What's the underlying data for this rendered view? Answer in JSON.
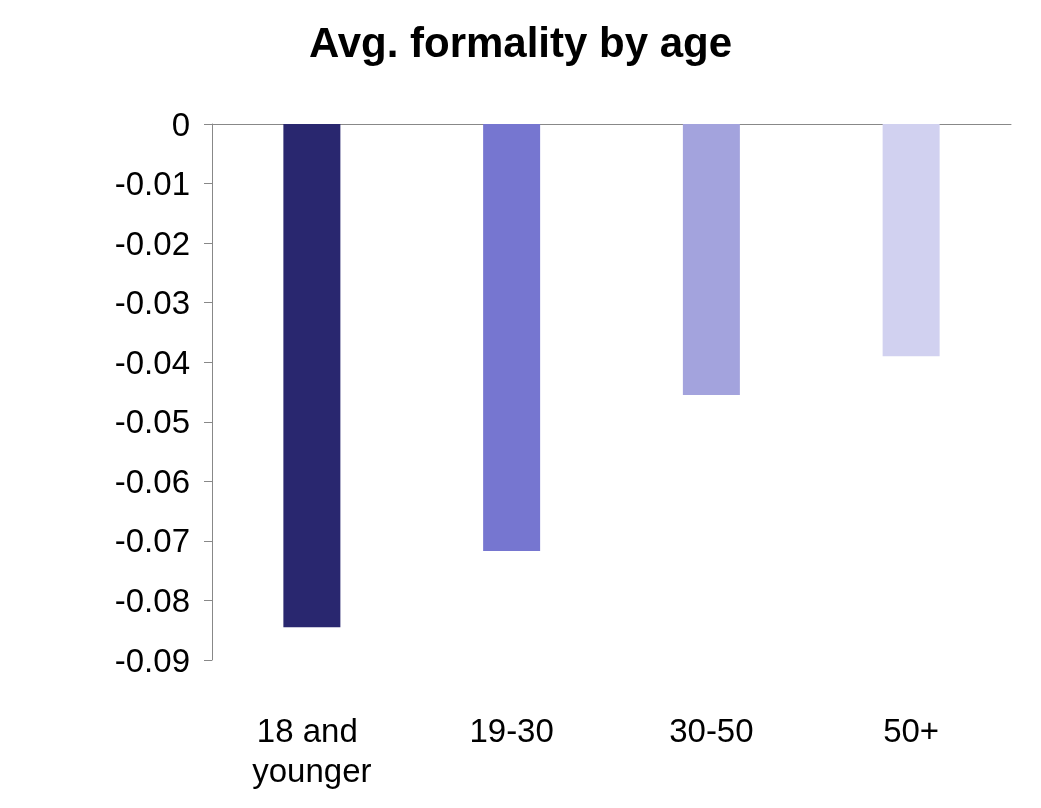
{
  "chart_data": {
    "type": "bar",
    "title": "Avg. formality by age",
    "categories": [
      "18 and younger",
      "19-30",
      "30-50",
      "50+"
    ],
    "values": [
      -0.0845,
      -0.0717,
      -0.0455,
      -0.039
    ],
    "colors": [
      "#29276f",
      "#7676d0",
      "#a3a3dd",
      "#d1d1f0"
    ],
    "ylim": [
      -0.09,
      0
    ],
    "yticks": [
      0,
      -0.01,
      -0.02,
      -0.03,
      -0.04,
      -0.05,
      -0.06,
      -0.07,
      -0.08,
      -0.09
    ],
    "grid": false
  }
}
